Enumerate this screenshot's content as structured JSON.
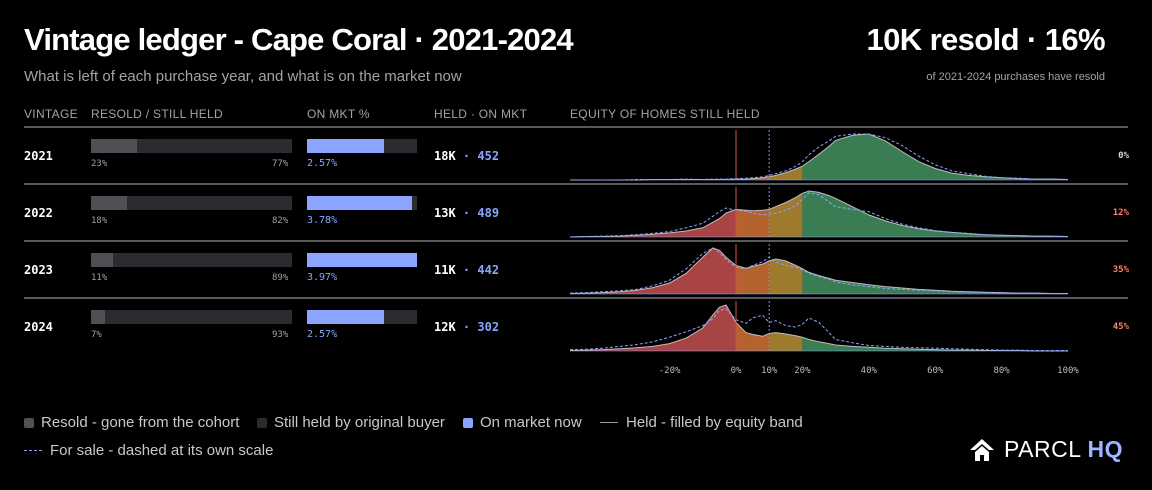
{
  "header": {
    "title": "Vintage ledger - Cape Coral · 2021-2024",
    "subtitle": "What is left of each purchase year, and what is on the market now",
    "headline": "10K resold · 16%",
    "headline_sub": "of 2021-2024 purchases have resold"
  },
  "columns": {
    "vintage": "VINTAGE",
    "resold": "RESOLD / STILL HELD",
    "on_mkt": "ON MKT %",
    "held": "HELD · ON MKT",
    "equity": "EQUITY OF HOMES STILL HELD"
  },
  "chart_data": {
    "type": "area",
    "x_ticks": [
      "-20%",
      "0%",
      "10%",
      "20%",
      "40%",
      "60%",
      "80%",
      "100%"
    ],
    "x_tick_values": [
      -20,
      0,
      10,
      20,
      40,
      60,
      80,
      100
    ],
    "xlim": [
      -50,
      100
    ],
    "equity_bands": [
      {
        "name": "negative",
        "range": [
          -50,
          0
        ],
        "color": "#a94444"
      },
      {
        "name": "0-10%",
        "range": [
          0,
          10
        ],
        "color": "#b4622e"
      },
      {
        "name": "10-20%",
        "range": [
          10,
          20
        ],
        "color": "#9e7a2c"
      },
      {
        "name": "20%+",
        "range": [
          20,
          100
        ],
        "color": "#3a7d53"
      }
    ],
    "x_grid": [
      -50,
      -45,
      -40,
      -35,
      -30,
      -25,
      -20,
      -15,
      -10,
      -7,
      -5,
      -3,
      0,
      3,
      5,
      8,
      10,
      12,
      15,
      18,
      20,
      22,
      25,
      28,
      30,
      35,
      40,
      45,
      50,
      55,
      60,
      65,
      70,
      75,
      80,
      85,
      90,
      95,
      100
    ],
    "rows": [
      {
        "vintage": "2021",
        "resold_label": "23%",
        "held_label": "77%",
        "resold_share": 0.23,
        "on_mkt_label": "2.57%",
        "on_mkt_share": 0.7,
        "held": "18K",
        "on_mkt": "452",
        "negative_share": "0%",
        "share_color": "#d8d8d8",
        "held_density": [
          0.0,
          0.0,
          0.0,
          0.0,
          0.0,
          0.01,
          0.01,
          0.01,
          0.01,
          0.01,
          0.01,
          0.01,
          0.02,
          0.02,
          0.03,
          0.05,
          0.07,
          0.1,
          0.16,
          0.24,
          0.3,
          0.4,
          0.56,
          0.73,
          0.86,
          0.97,
          1.0,
          0.85,
          0.62,
          0.4,
          0.25,
          0.15,
          0.1,
          0.07,
          0.05,
          0.03,
          0.02,
          0.02,
          0.01
        ],
        "for_sale_density": [
          0.0,
          0.0,
          0.0,
          0.0,
          0.01,
          0.01,
          0.01,
          0.02,
          0.01,
          0.02,
          0.02,
          0.02,
          0.03,
          0.04,
          0.05,
          0.07,
          0.1,
          0.14,
          0.2,
          0.3,
          0.4,
          0.55,
          0.72,
          0.85,
          0.95,
          1.0,
          1.0,
          0.92,
          0.75,
          0.52,
          0.33,
          0.2,
          0.14,
          0.08,
          0.05,
          0.04,
          0.02,
          0.02,
          0.01
        ]
      },
      {
        "vintage": "2022",
        "resold_label": "18%",
        "held_label": "82%",
        "resold_share": 0.18,
        "on_mkt_label": "3.78%",
        "on_mkt_share": 0.95,
        "held": "13K",
        "on_mkt": "489",
        "negative_share": "12%",
        "share_color": "#ff7f6e",
        "held_density": [
          0.0,
          0.01,
          0.01,
          0.02,
          0.04,
          0.06,
          0.09,
          0.13,
          0.2,
          0.32,
          0.4,
          0.52,
          0.6,
          0.58,
          0.57,
          0.58,
          0.6,
          0.66,
          0.75,
          0.86,
          0.95,
          1.0,
          0.97,
          0.9,
          0.84,
          0.66,
          0.48,
          0.35,
          0.25,
          0.18,
          0.13,
          0.1,
          0.07,
          0.05,
          0.04,
          0.03,
          0.02,
          0.02,
          0.01
        ],
        "for_sale_density": [
          0.0,
          0.01,
          0.02,
          0.03,
          0.05,
          0.08,
          0.12,
          0.2,
          0.3,
          0.45,
          0.55,
          0.63,
          0.58,
          0.56,
          0.52,
          0.48,
          0.5,
          0.52,
          0.58,
          0.68,
          0.82,
          0.96,
          0.92,
          0.76,
          0.66,
          0.6,
          0.55,
          0.4,
          0.28,
          0.2,
          0.14,
          0.1,
          0.08,
          0.05,
          0.04,
          0.03,
          0.02,
          0.01,
          0.01
        ]
      },
      {
        "vintage": "2023",
        "resold_label": "11%",
        "held_label": "89%",
        "resold_share": 0.11,
        "on_mkt_label": "3.97%",
        "on_mkt_share": 1.0,
        "held": "11K",
        "on_mkt": "442",
        "negative_share": "35%",
        "share_color": "#ff7f6e",
        "held_density": [
          0.01,
          0.02,
          0.03,
          0.05,
          0.08,
          0.14,
          0.24,
          0.45,
          0.8,
          1.0,
          0.95,
          0.8,
          0.62,
          0.56,
          0.6,
          0.65,
          0.72,
          0.76,
          0.72,
          0.62,
          0.55,
          0.47,
          0.4,
          0.34,
          0.3,
          0.25,
          0.2,
          0.16,
          0.13,
          0.1,
          0.08,
          0.06,
          0.05,
          0.04,
          0.03,
          0.02,
          0.02,
          0.01,
          0.01
        ],
        "for_sale_density": [
          0.02,
          0.03,
          0.05,
          0.07,
          0.1,
          0.18,
          0.3,
          0.55,
          0.88,
          1.0,
          0.9,
          0.75,
          0.58,
          0.55,
          0.62,
          0.7,
          0.8,
          0.7,
          0.62,
          0.58,
          0.52,
          0.45,
          0.38,
          0.32,
          0.26,
          0.2,
          0.16,
          0.12,
          0.1,
          0.08,
          0.07,
          0.05,
          0.04,
          0.03,
          0.02,
          0.02,
          0.02,
          0.01,
          0.01
        ]
      },
      {
        "vintage": "2024",
        "resold_label": "7%",
        "held_label": "93%",
        "resold_share": 0.07,
        "on_mkt_label": "2.57%",
        "on_mkt_share": 0.7,
        "held": "12K",
        "on_mkt": "302",
        "negative_share": "45%",
        "share_color": "#ff7f6e",
        "held_density": [
          0.01,
          0.02,
          0.03,
          0.05,
          0.07,
          0.1,
          0.16,
          0.28,
          0.5,
          0.78,
          0.95,
          1.0,
          0.62,
          0.4,
          0.36,
          0.32,
          0.38,
          0.4,
          0.37,
          0.33,
          0.3,
          0.25,
          0.2,
          0.16,
          0.13,
          0.1,
          0.08,
          0.06,
          0.05,
          0.04,
          0.03,
          0.02,
          0.02,
          0.01,
          0.01,
          0.01,
          0.0,
          0.0,
          0.0
        ],
        "for_sale_density": [
          0.03,
          0.04,
          0.06,
          0.1,
          0.14,
          0.2,
          0.3,
          0.42,
          0.55,
          0.7,
          0.88,
          0.92,
          0.68,
          0.6,
          0.72,
          0.78,
          0.62,
          0.66,
          0.55,
          0.52,
          0.58,
          0.72,
          0.62,
          0.4,
          0.25,
          0.18,
          0.12,
          0.1,
          0.08,
          0.07,
          0.06,
          0.05,
          0.04,
          0.03,
          0.02,
          0.02,
          0.01,
          0.01,
          0.01
        ]
      }
    ]
  },
  "legend": {
    "resold": "Resold - gone from the cohort",
    "held": "Still held by original buyer",
    "on_market": "On market now",
    "held_line": "Held - filled by equity band",
    "for_sale": "For sale - dashed at its own scale"
  },
  "brand": {
    "name": "PARCL",
    "suffix": "HQ"
  },
  "colors": {
    "on_market": "#8aa4ff",
    "resold": "#505054",
    "held_track": "#2c2c30",
    "negative_text": "#ff7f6e"
  }
}
